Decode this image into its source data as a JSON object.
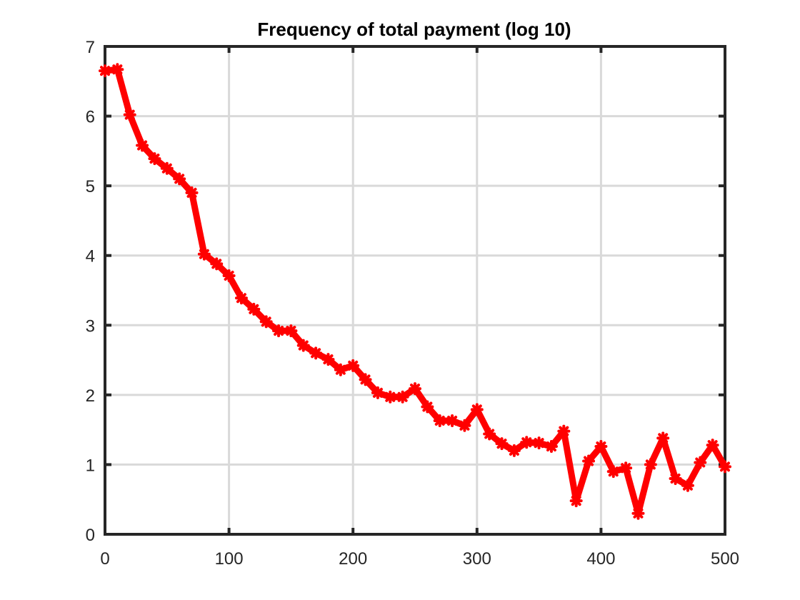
{
  "chart_data": {
    "type": "line",
    "title": "Frequency of total payment (log 10)",
    "xlabel": "",
    "ylabel": "",
    "xlim": [
      0,
      500
    ],
    "ylim": [
      0,
      7
    ],
    "xticks": [
      "0",
      "100",
      "200",
      "300",
      "400",
      "500"
    ],
    "yticks": [
      "0",
      "1",
      "2",
      "3",
      "4",
      "5",
      "6",
      "7"
    ],
    "grid": true,
    "series": [
      {
        "color": "#ff0000",
        "marker": "star",
        "x": [
          0,
          10,
          20,
          30,
          40,
          50,
          60,
          70,
          80,
          90,
          100,
          110,
          120,
          130,
          140,
          150,
          160,
          170,
          180,
          190,
          200,
          210,
          220,
          230,
          240,
          250,
          260,
          270,
          280,
          290,
          300,
          310,
          320,
          330,
          340,
          350,
          360,
          370,
          380,
          390,
          400,
          410,
          420,
          430,
          440,
          450,
          460,
          470,
          480,
          490,
          500
        ],
        "y": [
          6.65,
          6.67,
          6.02,
          5.58,
          5.39,
          5.25,
          5.1,
          4.9,
          4.02,
          3.88,
          3.71,
          3.39,
          3.23,
          3.05,
          2.92,
          2.92,
          2.71,
          2.6,
          2.51,
          2.36,
          2.42,
          2.22,
          2.03,
          1.97,
          1.97,
          2.09,
          1.83,
          1.63,
          1.63,
          1.56,
          1.79,
          1.44,
          1.3,
          1.2,
          1.32,
          1.31,
          1.26,
          1.48,
          0.48,
          1.05,
          1.26,
          0.9,
          0.95,
          0.3,
          1.0,
          1.38,
          0.8,
          0.7,
          1.03,
          1.28,
          0.97
        ]
      }
    ]
  }
}
